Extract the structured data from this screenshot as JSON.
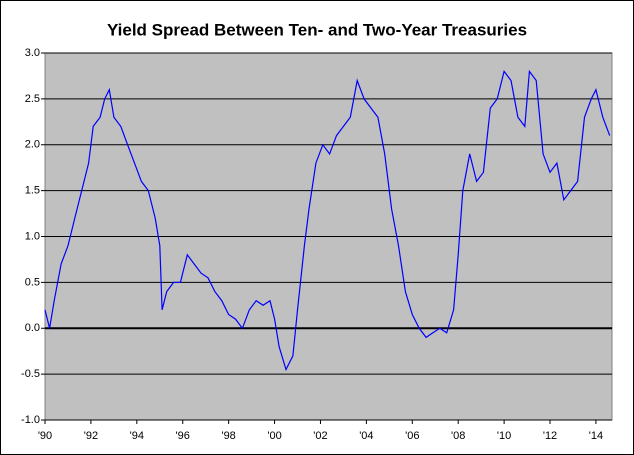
{
  "chart_data": {
    "type": "line",
    "title": "Yield Spread Between Ten- and Two-Year Treasuries",
    "x": [
      1990.0,
      1990.2,
      1990.4,
      1990.7,
      1991.0,
      1991.3,
      1991.6,
      1991.9,
      1992.1,
      1992.4,
      1992.6,
      1992.8,
      1993.0,
      1993.3,
      1993.6,
      1993.9,
      1994.2,
      1994.5,
      1994.8,
      1995.0,
      1995.1,
      1995.3,
      1995.6,
      1995.9,
      1996.2,
      1996.5,
      1996.8,
      1997.1,
      1997.4,
      1997.7,
      1998.0,
      1998.3,
      1998.6,
      1998.9,
      1999.2,
      1999.5,
      1999.8,
      2000.0,
      2000.2,
      2000.5,
      2000.8,
      2001.0,
      2001.3,
      2001.5,
      2001.8,
      2002.1,
      2002.4,
      2002.7,
      2003.0,
      2003.3,
      2003.6,
      2003.9,
      2004.2,
      2004.5,
      2004.8,
      2005.1,
      2005.4,
      2005.7,
      2006.0,
      2006.3,
      2006.6,
      2006.9,
      2007.2,
      2007.5,
      2007.8,
      2008.0,
      2008.2,
      2008.5,
      2008.8,
      2009.1,
      2009.4,
      2009.7,
      2010.0,
      2010.3,
      2010.6,
      2010.9,
      2011.1,
      2011.4,
      2011.7,
      2012.0,
      2012.3,
      2012.6,
      2012.9,
      2013.2,
      2013.5,
      2013.8,
      2014.0,
      2014.3,
      2014.6
    ],
    "series": [
      {
        "name": "Yield Spread",
        "color": "#0000ff",
        "values": [
          0.2,
          0.0,
          0.3,
          0.7,
          0.9,
          1.2,
          1.5,
          1.8,
          2.2,
          2.3,
          2.5,
          2.6,
          2.3,
          2.2,
          2.0,
          1.8,
          1.6,
          1.5,
          1.2,
          0.9,
          0.2,
          0.4,
          0.5,
          0.5,
          0.8,
          0.7,
          0.6,
          0.55,
          0.4,
          0.3,
          0.15,
          0.1,
          0.0,
          0.2,
          0.3,
          0.25,
          0.3,
          0.1,
          -0.2,
          -0.45,
          -0.3,
          0.2,
          0.9,
          1.3,
          1.8,
          2.0,
          1.9,
          2.1,
          2.2,
          2.3,
          2.7,
          2.5,
          2.4,
          2.3,
          1.9,
          1.3,
          0.9,
          0.4,
          0.15,
          0.0,
          -0.1,
          -0.05,
          0.0,
          -0.05,
          0.2,
          0.8,
          1.5,
          1.9,
          1.6,
          1.7,
          2.4,
          2.5,
          2.8,
          2.7,
          2.3,
          2.2,
          2.8,
          2.7,
          1.9,
          1.7,
          1.8,
          1.4,
          1.5,
          1.6,
          2.3,
          2.5,
          2.6,
          2.3,
          2.1
        ]
      }
    ],
    "xlim": [
      1990,
      2014.7
    ],
    "xticks": [
      {
        "value": 1990,
        "label": "'90"
      },
      {
        "value": 1992,
        "label": "'92"
      },
      {
        "value": 1994,
        "label": "'94"
      },
      {
        "value": 1996,
        "label": "'96"
      },
      {
        "value": 1998,
        "label": "'98"
      },
      {
        "value": 2000,
        "label": "'00"
      },
      {
        "value": 2002,
        "label": "'02"
      },
      {
        "value": 2004,
        "label": "'04"
      },
      {
        "value": 2006,
        "label": "'06"
      },
      {
        "value": 2008,
        "label": "'08"
      },
      {
        "value": 2010,
        "label": "'10"
      },
      {
        "value": 2012,
        "label": "'12"
      },
      {
        "value": 2014,
        "label": "'14"
      }
    ],
    "ylim": [
      -1,
      3
    ],
    "yticks": [
      {
        "value": -1,
        "label": "-1.0"
      },
      {
        "value": -0.5,
        "label": "-0.5"
      },
      {
        "value": 0,
        "label": "0.0"
      },
      {
        "value": 0.5,
        "label": "0.5"
      },
      {
        "value": 1,
        "label": "1.0"
      },
      {
        "value": 1.5,
        "label": "1.5"
      },
      {
        "value": 2,
        "label": "2.0"
      },
      {
        "value": 2.5,
        "label": "2.5"
      },
      {
        "value": 3,
        "label": "3.0"
      }
    ],
    "grid": true
  }
}
